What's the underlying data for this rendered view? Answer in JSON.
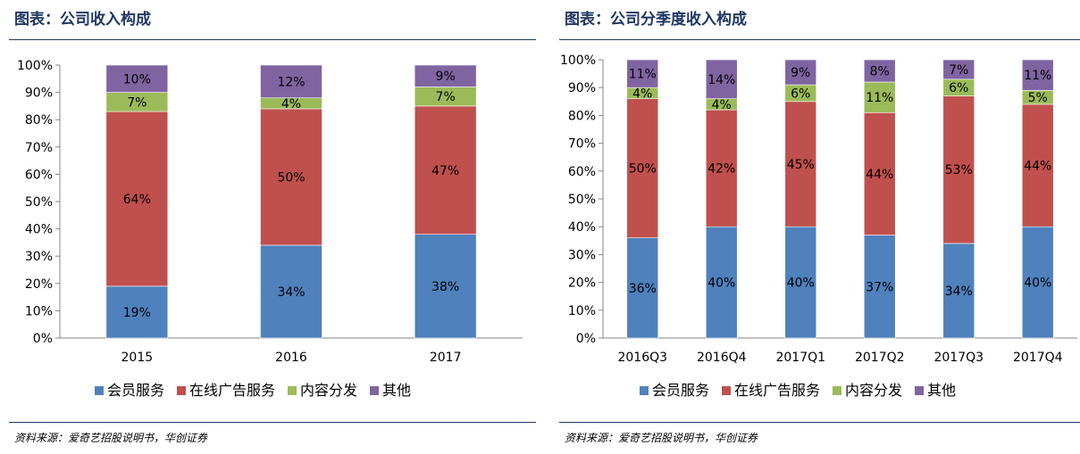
{
  "colors": {
    "member": "#4f81bd",
    "ads": "#c0504d",
    "content": "#9bbb59",
    "other": "#8064a2",
    "title": "#1f3864"
  },
  "left": {
    "title": "图表：公司收入构成",
    "source": "资料来源：爱奇艺招股说明书，华创证券"
  },
  "right": {
    "title": "图表：公司分季度收入构成",
    "source": "资料来源：爱奇艺招股说明书，华创证券"
  },
  "chart_data": [
    {
      "type": "bar",
      "stacked": true,
      "title": "图表：公司收入构成",
      "categories": [
        "2015",
        "2016",
        "2017"
      ],
      "yticks": [
        "0%",
        "10%",
        "20%",
        "30%",
        "40%",
        "50%",
        "60%",
        "70%",
        "80%",
        "90%",
        "100%"
      ],
      "ylim": [
        0,
        100
      ],
      "legend_position": "bottom",
      "series": [
        {
          "name": "会员服务",
          "values": [
            19,
            34,
            38
          ],
          "labels": [
            "19%",
            "34%",
            "38%"
          ]
        },
        {
          "name": "在线广告服务",
          "values": [
            64,
            50,
            47
          ],
          "labels": [
            "64%",
            "50%",
            "47%"
          ]
        },
        {
          "name": "内容分发",
          "values": [
            7,
            4,
            7
          ],
          "labels": [
            "7%",
            "4%",
            "7%"
          ]
        },
        {
          "name": "其他",
          "values": [
            10,
            12,
            9
          ],
          "labels": [
            "10%",
            "12%",
            "9%"
          ]
        }
      ]
    },
    {
      "type": "bar",
      "stacked": true,
      "title": "图表：公司分季度收入构成",
      "categories": [
        "2016Q3",
        "2016Q4",
        "2017Q1",
        "2017Q2",
        "2017Q3",
        "2017Q4"
      ],
      "yticks": [
        "0%",
        "10%",
        "20%",
        "30%",
        "40%",
        "50%",
        "60%",
        "70%",
        "80%",
        "90%",
        "100%"
      ],
      "ylim": [
        0,
        100
      ],
      "legend_position": "bottom",
      "series": [
        {
          "name": "会员服务",
          "values": [
            36,
            40,
            40,
            37,
            34,
            40
          ],
          "labels": [
            "36%",
            "40%",
            "40%",
            "37%",
            "34%",
            "40%"
          ]
        },
        {
          "name": "在线广告服务",
          "values": [
            50,
            42,
            45,
            44,
            53,
            44
          ],
          "labels": [
            "50%",
            "42%",
            "45%",
            "44%",
            "53%",
            "44%"
          ]
        },
        {
          "name": "内容分发",
          "values": [
            4,
            4,
            6,
            11,
            6,
            5
          ],
          "labels": [
            "4%",
            "4%",
            "6%",
            "11%",
            "6%",
            "5%"
          ]
        },
        {
          "name": "其他",
          "values": [
            11,
            14,
            9,
            8,
            7,
            11
          ],
          "labels": [
            "11%",
            "14%",
            "9%",
            "8%",
            "7%",
            "11%"
          ]
        }
      ]
    }
  ]
}
